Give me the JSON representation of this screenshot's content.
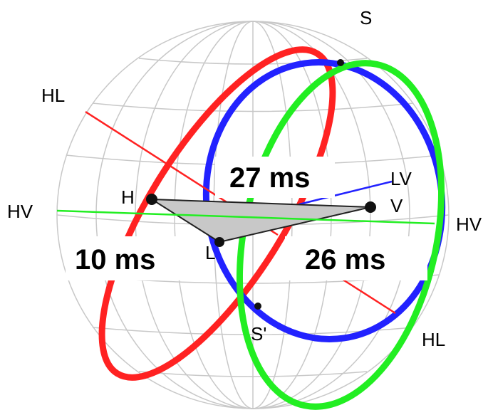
{
  "labels": {
    "s_top": "S",
    "hl_left": "HL",
    "hv_left": "HV",
    "h": "H",
    "ms_27": "27 ms",
    "lv": "LV",
    "v": "V",
    "hv_right": "HV",
    "ms_10": "10 ms",
    "l": "L",
    "ms_26": "26 ms",
    "s_prime": "S'",
    "hl_right": "HL"
  }
}
